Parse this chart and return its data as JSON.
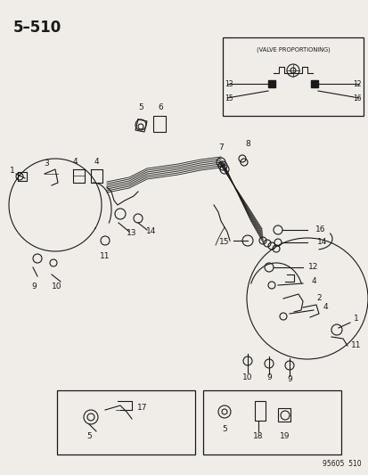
{
  "title": "5–510",
  "subtitle_code": "95605  510",
  "bg_color": "#f0ede8",
  "line_color": "#1a1a1a",
  "fig_width": 4.14,
  "fig_height": 5.33,
  "dpi": 100
}
